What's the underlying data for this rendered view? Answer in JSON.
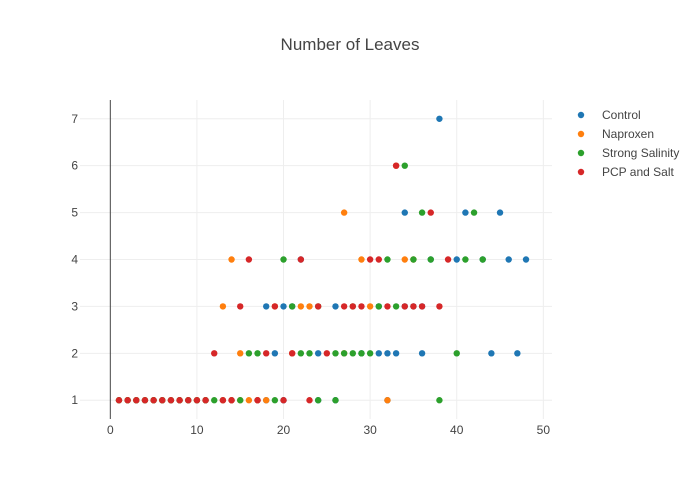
{
  "chart_data": {
    "type": "scatter",
    "title": "Number of Leaves",
    "xlabel": "",
    "ylabel": "",
    "xlim": [
      -3.5,
      51
    ],
    "ylim": [
      0.6,
      7.4
    ],
    "x_ticks": [
      0,
      10,
      20,
      30,
      40,
      50
    ],
    "y_ticks": [
      1,
      2,
      3,
      4,
      5,
      6,
      7
    ],
    "grid": true,
    "legend_position": "top-right",
    "series": [
      {
        "name": "Control",
        "color": "#1f77b4",
        "points": [
          [
            1,
            1
          ],
          [
            2,
            1
          ],
          [
            3,
            1
          ],
          [
            4,
            1
          ],
          [
            5,
            1
          ],
          [
            6,
            1
          ],
          [
            7,
            1
          ],
          [
            8,
            1
          ],
          [
            9,
            1
          ],
          [
            10,
            1
          ],
          [
            11,
            1
          ],
          [
            13,
            1
          ],
          [
            14,
            1
          ],
          [
            17,
            1
          ],
          [
            18,
            1
          ],
          [
            20,
            1
          ],
          [
            24,
            1
          ],
          [
            26,
            1
          ],
          [
            32,
            1
          ],
          [
            19,
            2
          ],
          [
            24,
            2
          ],
          [
            29,
            2
          ],
          [
            31,
            2
          ],
          [
            32,
            2
          ],
          [
            33,
            2
          ],
          [
            36,
            2
          ],
          [
            44,
            2
          ],
          [
            47,
            2
          ],
          [
            18,
            3
          ],
          [
            20,
            3
          ],
          [
            21,
            3
          ],
          [
            26,
            3
          ],
          [
            31,
            3
          ],
          [
            34,
            3
          ],
          [
            35,
            3
          ],
          [
            36,
            3
          ],
          [
            22,
            4
          ],
          [
            37,
            4
          ],
          [
            40,
            4
          ],
          [
            43,
            4
          ],
          [
            46,
            4
          ],
          [
            48,
            4
          ],
          [
            34,
            5
          ],
          [
            41,
            5
          ],
          [
            45,
            5
          ],
          [
            38,
            7
          ]
        ]
      },
      {
        "name": "Naproxen",
        "color": "#ff7f0e",
        "points": [
          [
            1,
            1
          ],
          [
            2,
            1
          ],
          [
            3,
            1
          ],
          [
            4,
            1
          ],
          [
            5,
            1
          ],
          [
            6,
            1
          ],
          [
            7,
            1
          ],
          [
            8,
            1
          ],
          [
            9,
            1
          ],
          [
            10,
            1
          ],
          [
            11,
            1
          ],
          [
            13,
            1
          ],
          [
            14,
            1
          ],
          [
            15,
            1
          ],
          [
            16,
            1
          ],
          [
            17,
            1
          ],
          [
            18,
            1
          ],
          [
            32,
            1
          ],
          [
            15,
            2
          ],
          [
            21,
            2
          ],
          [
            27,
            2
          ],
          [
            13,
            3
          ],
          [
            19,
            3
          ],
          [
            22,
            3
          ],
          [
            23,
            3
          ],
          [
            30,
            3
          ],
          [
            14,
            4
          ],
          [
            29,
            4
          ],
          [
            34,
            4
          ],
          [
            35,
            4
          ],
          [
            27,
            5
          ],
          [
            33,
            6
          ]
        ]
      },
      {
        "name": "Strong Salinity",
        "color": "#2ca02c",
        "points": [
          [
            1,
            1
          ],
          [
            2,
            1
          ],
          [
            3,
            1
          ],
          [
            4,
            1
          ],
          [
            5,
            1
          ],
          [
            6,
            1
          ],
          [
            7,
            1
          ],
          [
            8,
            1
          ],
          [
            9,
            1
          ],
          [
            10,
            1
          ],
          [
            11,
            1
          ],
          [
            12,
            1
          ],
          [
            15,
            1
          ],
          [
            19,
            1
          ],
          [
            24,
            1
          ],
          [
            26,
            1
          ],
          [
            38,
            1
          ],
          [
            16,
            2
          ],
          [
            17,
            2
          ],
          [
            22,
            2
          ],
          [
            23,
            2
          ],
          [
            26,
            2
          ],
          [
            27,
            2
          ],
          [
            28,
            2
          ],
          [
            29,
            2
          ],
          [
            30,
            2
          ],
          [
            40,
            2
          ],
          [
            21,
            3
          ],
          [
            24,
            3
          ],
          [
            28,
            3
          ],
          [
            31,
            3
          ],
          [
            33,
            3
          ],
          [
            20,
            4
          ],
          [
            32,
            4
          ],
          [
            35,
            4
          ],
          [
            37,
            4
          ],
          [
            41,
            4
          ],
          [
            43,
            4
          ],
          [
            36,
            5
          ],
          [
            42,
            5
          ],
          [
            34,
            6
          ]
        ]
      },
      {
        "name": "PCP and Salt",
        "color": "#d62728",
        "points": [
          [
            1,
            1
          ],
          [
            2,
            1
          ],
          [
            3,
            1
          ],
          [
            4,
            1
          ],
          [
            5,
            1
          ],
          [
            6,
            1
          ],
          [
            7,
            1
          ],
          [
            8,
            1
          ],
          [
            9,
            1
          ],
          [
            10,
            1
          ],
          [
            11,
            1
          ],
          [
            13,
            1
          ],
          [
            14,
            1
          ],
          [
            17,
            1
          ],
          [
            20,
            1
          ],
          [
            23,
            1
          ],
          [
            12,
            2
          ],
          [
            18,
            2
          ],
          [
            21,
            2
          ],
          [
            25,
            2
          ],
          [
            15,
            3
          ],
          [
            19,
            3
          ],
          [
            24,
            3
          ],
          [
            27,
            3
          ],
          [
            28,
            3
          ],
          [
            29,
            3
          ],
          [
            32,
            3
          ],
          [
            34,
            3
          ],
          [
            35,
            3
          ],
          [
            36,
            3
          ],
          [
            38,
            3
          ],
          [
            16,
            4
          ],
          [
            22,
            4
          ],
          [
            30,
            4
          ],
          [
            31,
            4
          ],
          [
            39,
            4
          ],
          [
            37,
            5
          ],
          [
            33,
            6
          ]
        ]
      }
    ]
  }
}
